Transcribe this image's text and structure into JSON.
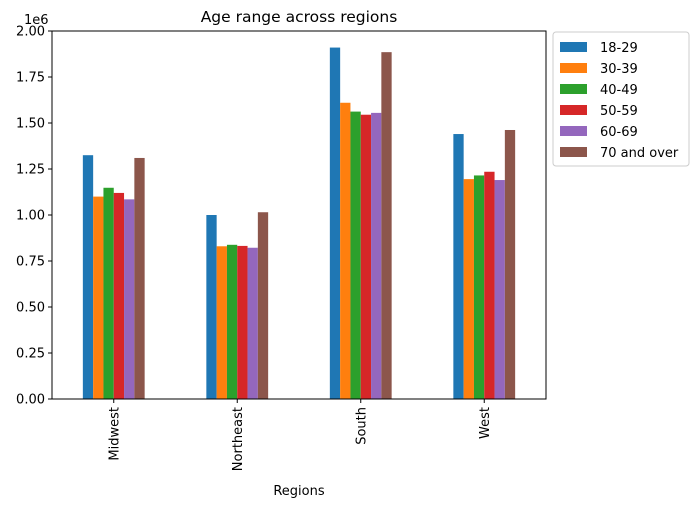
{
  "chart_data": {
    "type": "bar",
    "title": "Age range across regions",
    "xlabel": "Regions",
    "ylabel": "",
    "y_multiplier_label": "1e6",
    "categories": [
      "Midwest",
      "Northeast",
      "South",
      "West"
    ],
    "ylim": [
      0,
      2.0
    ],
    "y_ticks": [
      "0.00",
      "0.25",
      "0.50",
      "0.75",
      "1.00",
      "1.25",
      "1.50",
      "1.75",
      "2.00"
    ],
    "grid": false,
    "legend_position": "outside top-right",
    "series": [
      {
        "name": "18-29",
        "color": "#1f77b4",
        "values": [
          1.325,
          1.0,
          1.91,
          1.44
        ]
      },
      {
        "name": "30-39",
        "color": "#ff7f0e",
        "values": [
          1.1,
          0.83,
          1.61,
          1.195
        ]
      },
      {
        "name": "40-49",
        "color": "#2ca02c",
        "values": [
          1.148,
          0.838,
          1.562,
          1.215
        ]
      },
      {
        "name": "50-59",
        "color": "#d62728",
        "values": [
          1.12,
          0.832,
          1.545,
          1.235
        ]
      },
      {
        "name": "60-69",
        "color": "#9467bd",
        "values": [
          1.085,
          0.822,
          1.555,
          1.19
        ]
      },
      {
        "name": "70 and over",
        "color": "#8c564b",
        "values": [
          1.31,
          1.015,
          1.885,
          1.462
        ]
      }
    ]
  }
}
